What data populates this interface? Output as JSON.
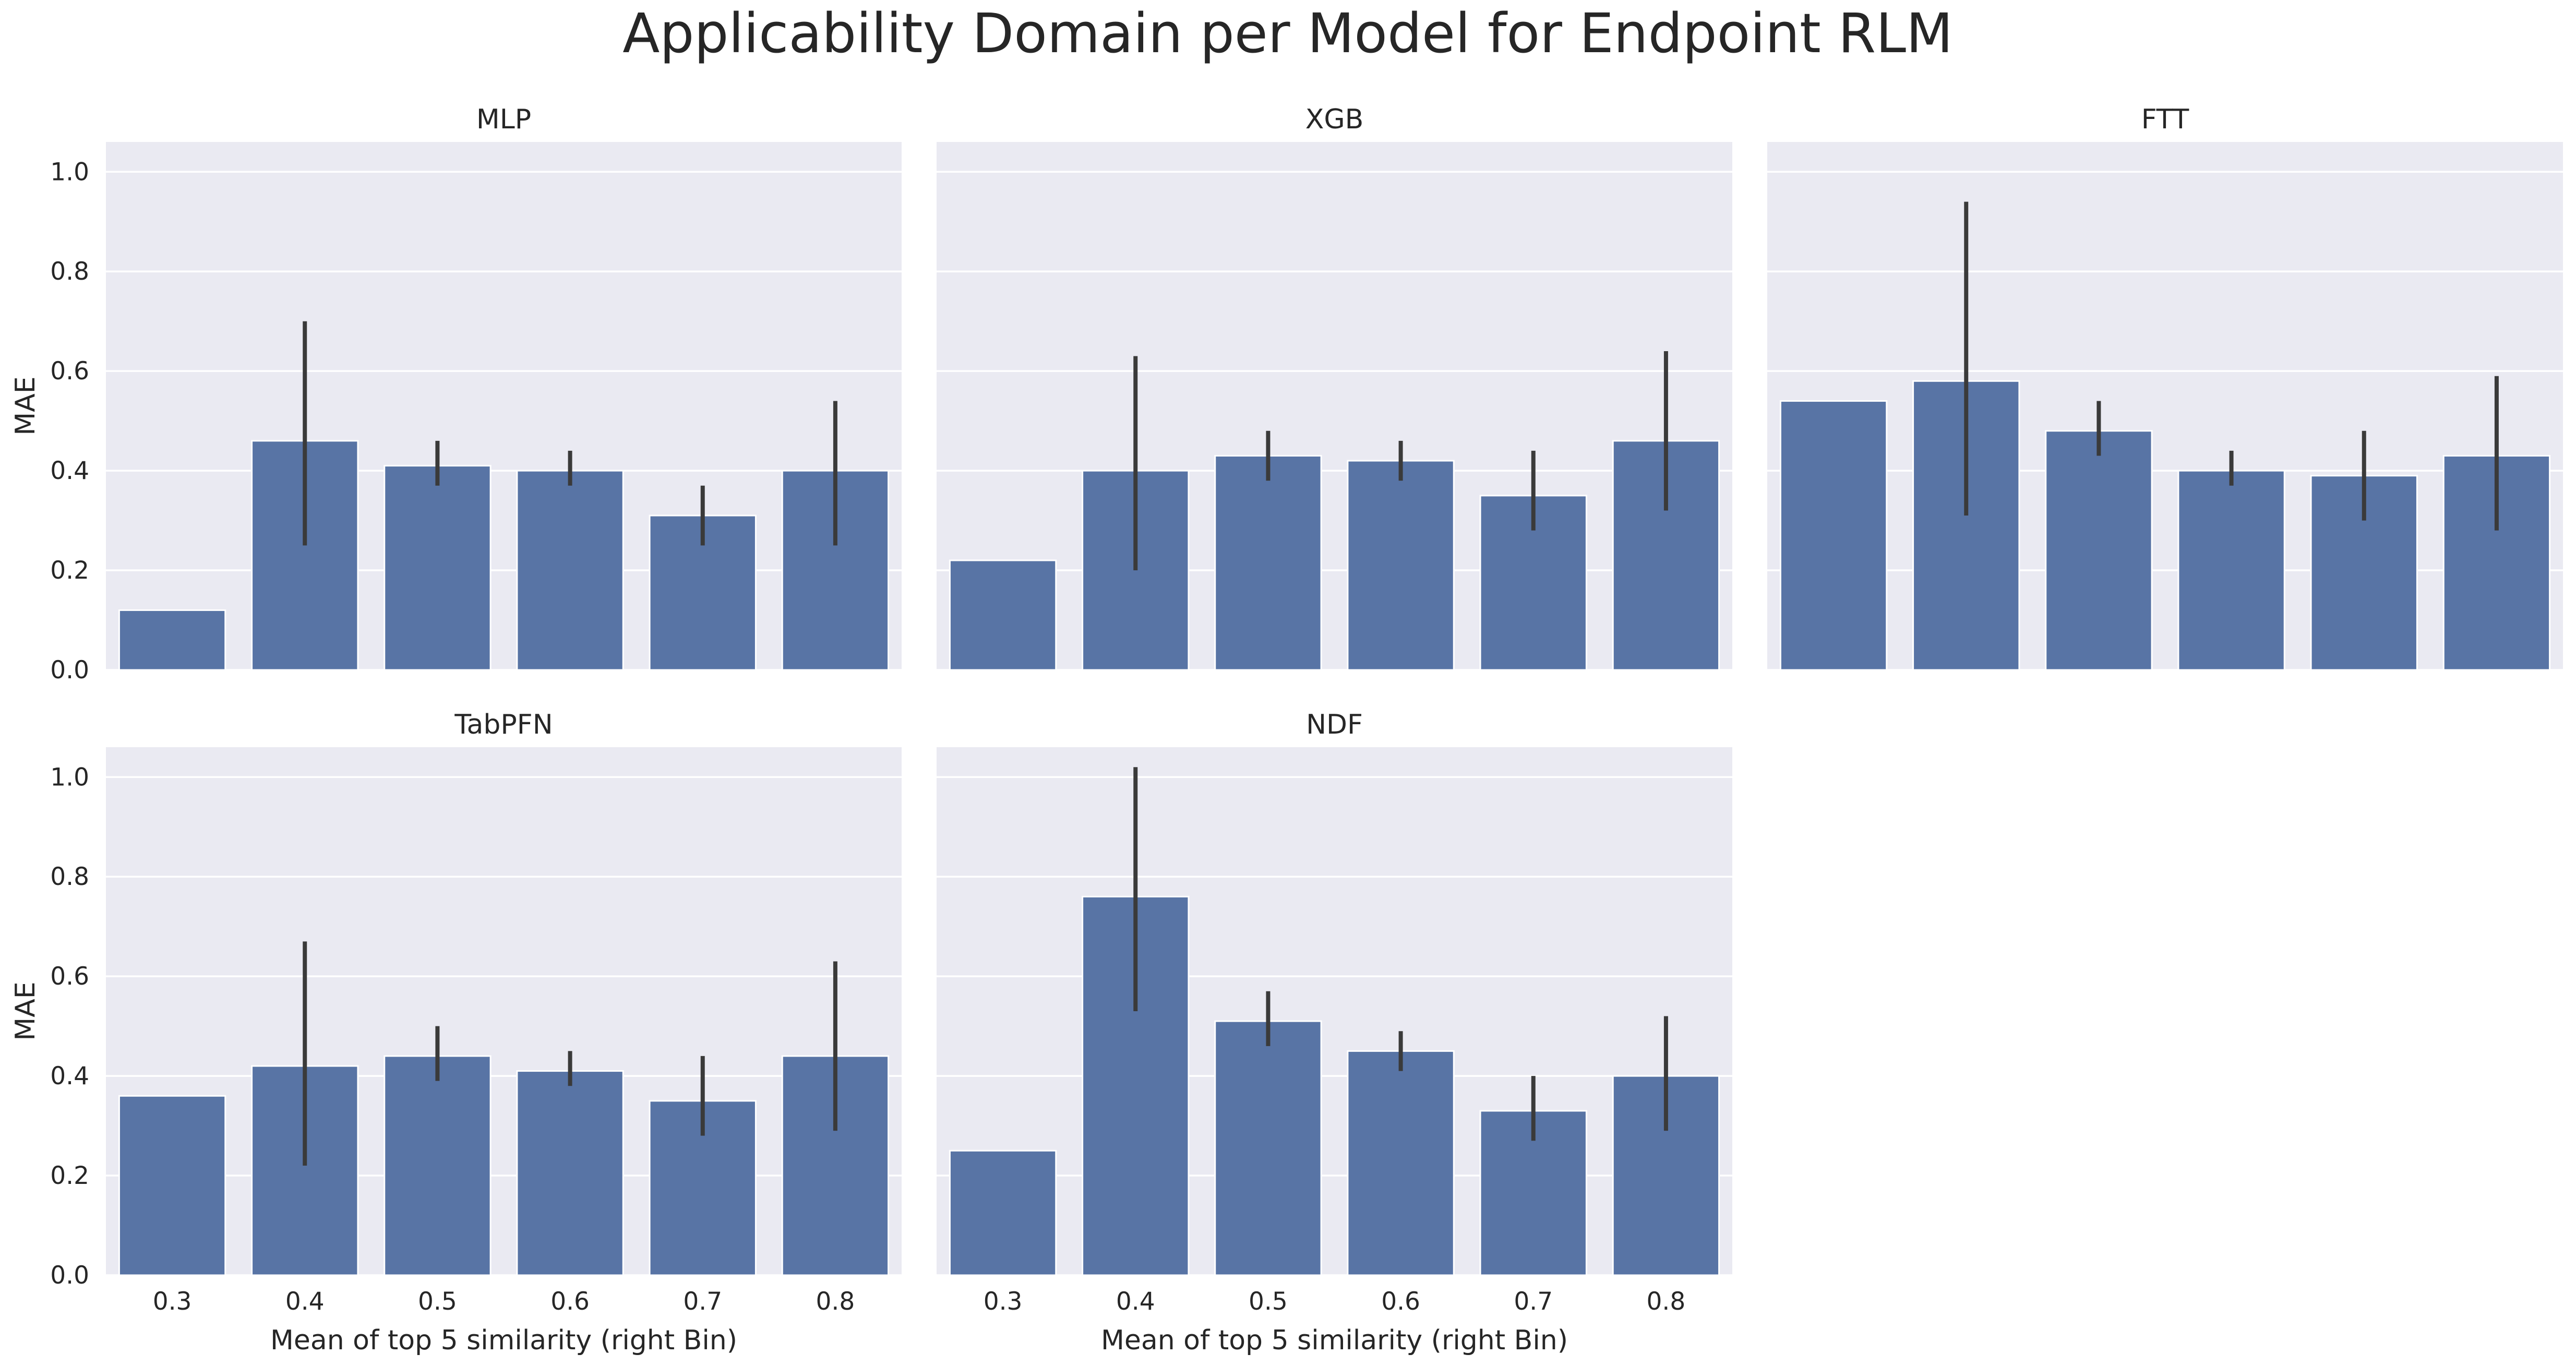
{
  "figure": {
    "title": "Applicability Domain per Model for Endpoint RLM"
  },
  "colors": {
    "bar": "#5874a5",
    "panel_bg": "#eaeaf2",
    "grid": "#ffffff",
    "errorbar": "#3a3a3a",
    "text": "#262626"
  },
  "chart_data": [
    {
      "type": "bar",
      "title": "MLP",
      "xlabel": "",
      "ylabel": "MAE",
      "categories": [
        "0.3",
        "0.4",
        "0.5",
        "0.6",
        "0.7",
        "0.8"
      ],
      "values": [
        0.12,
        0.46,
        0.41,
        0.4,
        0.31,
        0.4
      ],
      "error_low": [
        null,
        0.25,
        0.37,
        0.37,
        0.25,
        0.25
      ],
      "error_high": [
        null,
        0.7,
        0.46,
        0.44,
        0.37,
        0.54
      ],
      "ylim": [
        0,
        1.06
      ],
      "yticks": [
        "0.0",
        "0.2",
        "0.4",
        "0.6",
        "0.8",
        "1.0"
      ],
      "grid": true
    },
    {
      "type": "bar",
      "title": "XGB",
      "xlabel": "",
      "ylabel": "",
      "categories": [
        "0.3",
        "0.4",
        "0.5",
        "0.6",
        "0.7",
        "0.8"
      ],
      "values": [
        0.22,
        0.4,
        0.43,
        0.42,
        0.35,
        0.46
      ],
      "error_low": [
        null,
        0.2,
        0.38,
        0.38,
        0.28,
        0.32
      ],
      "error_high": [
        null,
        0.63,
        0.48,
        0.46,
        0.44,
        0.64
      ],
      "ylim": [
        0,
        1.06
      ],
      "grid": true
    },
    {
      "type": "bar",
      "title": "FTT",
      "xlabel": "",
      "ylabel": "",
      "categories": [
        "0.3",
        "0.4",
        "0.5",
        "0.6",
        "0.7",
        "0.8"
      ],
      "values": [
        0.54,
        0.58,
        0.48,
        0.4,
        0.39,
        0.43
      ],
      "error_low": [
        null,
        0.31,
        0.43,
        0.37,
        0.3,
        0.28
      ],
      "error_high": [
        null,
        0.94,
        0.54,
        0.44,
        0.48,
        0.59
      ],
      "ylim": [
        0,
        1.06
      ],
      "grid": true
    },
    {
      "type": "bar",
      "title": "TabPFN",
      "xlabel": "Mean of top 5 similarity (right Bin)",
      "ylabel": "MAE",
      "categories": [
        "0.3",
        "0.4",
        "0.5",
        "0.6",
        "0.7",
        "0.8"
      ],
      "values": [
        0.36,
        0.42,
        0.44,
        0.41,
        0.35,
        0.44
      ],
      "error_low": [
        null,
        0.22,
        0.39,
        0.38,
        0.28,
        0.29
      ],
      "error_high": [
        null,
        0.67,
        0.5,
        0.45,
        0.44,
        0.63
      ],
      "ylim": [
        0,
        1.06
      ],
      "yticks": [
        "0.0",
        "0.2",
        "0.4",
        "0.6",
        "0.8",
        "1.0"
      ],
      "grid": true
    },
    {
      "type": "bar",
      "title": "NDF",
      "xlabel": "Mean of top 5 similarity (right Bin)",
      "ylabel": "",
      "categories": [
        "0.3",
        "0.4",
        "0.5",
        "0.6",
        "0.7",
        "0.8"
      ],
      "values": [
        0.25,
        0.76,
        0.51,
        0.45,
        0.33,
        0.4
      ],
      "error_low": [
        null,
        0.53,
        0.46,
        0.41,
        0.27,
        0.29
      ],
      "error_high": [
        null,
        1.02,
        0.57,
        0.49,
        0.4,
        0.52
      ],
      "ylim": [
        0,
        1.06
      ],
      "grid": true
    }
  ]
}
